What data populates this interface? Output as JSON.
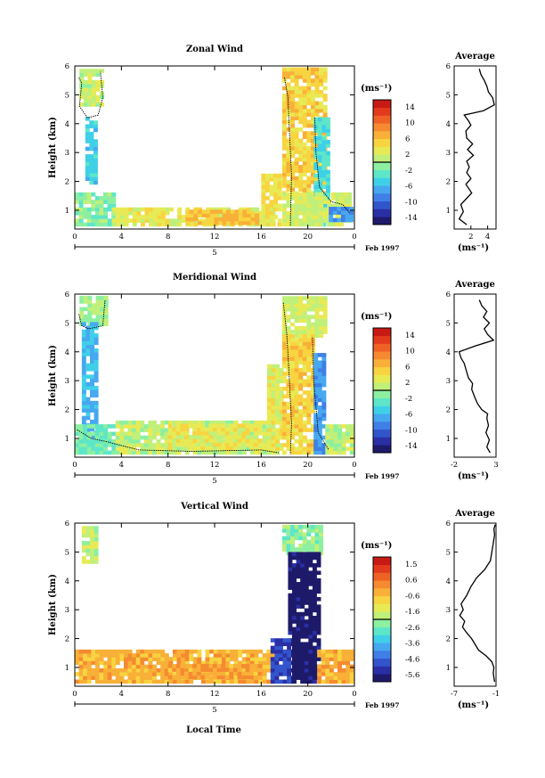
{
  "figure": {
    "month_label": "Feb 1997",
    "x_axis_label": "Local Time",
    "y_axis_label": "Height (km)",
    "colorbar_unit": "(ms⁻¹)",
    "profile_unit": "(ms⁻¹)",
    "day_label": "5",
    "colors": [
      "#1e1a6a",
      "#2a2fa6",
      "#3355cc",
      "#3f7fe6",
      "#47a8f0",
      "#3fd0e8",
      "#5ee6c8",
      "#8cf0a0",
      "#c0f07a",
      "#e8ea55",
      "#f7d440",
      "#f8b038",
      "#f58a30",
      "#ef6226",
      "#e23a1c",
      "#c81a14"
    ]
  },
  "chart_data": [
    {
      "type": "heatmap",
      "title": "Zonal Wind",
      "xlabel": "",
      "ylabel": "Height (km)",
      "x_ticks": [
        "0",
        "4",
        "8",
        "12",
        "16",
        "20",
        "0"
      ],
      "y_ticks": [
        "1",
        "2",
        "3",
        "4",
        "5",
        "6"
      ],
      "xlim": [
        0,
        24
      ],
      "ylim": [
        0.35,
        6
      ],
      "colorbar": {
        "unit": "(ms⁻¹)",
        "ticks": [
          "14",
          "10",
          "6",
          "2",
          "-2",
          "-6",
          "-10",
          "-14"
        ],
        "range": [
          -16,
          16
        ]
      },
      "regions": [
        {
          "t0": 0.4,
          "t1": 2.2,
          "z0": 4.6,
          "z1": 5.85,
          "v": 1.5
        },
        {
          "t0": 0.9,
          "t1": 1.8,
          "z0": 1.9,
          "z1": 4.2,
          "v": -5
        },
        {
          "t0": 0.0,
          "t1": 3.2,
          "z0": 0.45,
          "z1": 1.55,
          "v": -1
        },
        {
          "t0": 3.2,
          "t1": 17.0,
          "z0": 0.45,
          "z1": 1.0,
          "v": 3
        },
        {
          "t0": 9.5,
          "t1": 15.5,
          "z0": 0.5,
          "z1": 1.0,
          "v": 6
        },
        {
          "t0": 16.0,
          "t1": 17.5,
          "z0": 0.45,
          "z1": 2.2,
          "v": 4
        },
        {
          "t0": 17.8,
          "t1": 21.5,
          "z0": 1.4,
          "z1": 5.85,
          "v": 5
        },
        {
          "t0": 20.5,
          "t1": 21.8,
          "z0": 0.45,
          "z1": 4.2,
          "v": -4
        },
        {
          "t0": 17.8,
          "t1": 23.5,
          "z0": 0.45,
          "z1": 1.5,
          "v": 2
        },
        {
          "t0": 21.8,
          "t1": 23.6,
          "z0": 0.6,
          "z1": 1.1,
          "v": -8
        }
      ],
      "contour_zero": [
        [
          [
            0.35,
            5.6
          ],
          [
            0.6,
            5.4
          ],
          [
            0.4,
            4.6
          ],
          [
            1.1,
            4.2
          ],
          [
            2.0,
            4.3
          ],
          [
            2.4,
            4.9
          ],
          [
            2.2,
            5.8
          ]
        ],
        [
          [
            18.0,
            5.6
          ],
          [
            18.3,
            4.9
          ],
          [
            18.4,
            3.9
          ],
          [
            18.6,
            2.2
          ],
          [
            18.5,
            0.45
          ]
        ],
        [
          [
            20.6,
            4.2
          ],
          [
            20.7,
            3.0
          ],
          [
            21.0,
            1.8
          ],
          [
            22.0,
            1.3
          ],
          [
            23.0,
            1.2
          ],
          [
            23.6,
            0.9
          ]
        ]
      ],
      "profile": {
        "xlabel": "(ms⁻¹)",
        "title": "Average",
        "x_ticks": [
          "2",
          "4"
        ],
        "y_ticks": [
          "1",
          "2",
          "3",
          "4",
          "5",
          "6"
        ],
        "xlim": [
          0,
          5
        ],
        "ylim": [
          0.35,
          6
        ],
        "x": [
          1.5,
          0.6,
          1.1,
          0.8,
          2.1,
          1.4,
          2.0,
          1.5,
          1.8,
          1.5,
          2.3,
          1.6,
          2.2,
          1.5,
          1.4,
          2.0,
          1.7,
          1.2,
          3.5,
          4.8,
          4.6,
          4.1,
          3.9,
          3.6,
          3.2,
          3.0
        ],
        "z": [
          0.5,
          0.7,
          0.95,
          1.2,
          1.6,
          1.9,
          2.1,
          2.3,
          2.5,
          2.7,
          2.9,
          3.1,
          3.3,
          3.5,
          3.75,
          3.95,
          4.1,
          4.3,
          4.45,
          4.65,
          4.9,
          5.1,
          5.3,
          5.5,
          5.7,
          5.9
        ]
      }
    },
    {
      "type": "heatmap",
      "title": "Meridional Wind",
      "xlabel": "",
      "ylabel": "Height (km)",
      "x_ticks": [
        "0",
        "4",
        "8",
        "12",
        "16",
        "20",
        "0"
      ],
      "y_ticks": [
        "1",
        "2",
        "3",
        "4",
        "5",
        "6"
      ],
      "xlim": [
        0,
        24
      ],
      "ylim": [
        0.35,
        6
      ],
      "colorbar": {
        "unit": "(ms⁻¹)",
        "ticks": [
          "14",
          "10",
          "6",
          "2",
          "-2",
          "-6",
          "-10",
          "-14"
        ],
        "range": [
          -16,
          16
        ]
      },
      "regions": [
        {
          "t0": 0.4,
          "t1": 2.8,
          "z0": 4.9,
          "z1": 5.85,
          "v": 0
        },
        {
          "t0": 0.6,
          "t1": 2.0,
          "z0": 1.0,
          "z1": 4.9,
          "v": -6
        },
        {
          "t0": 0.0,
          "t1": 3.5,
          "z0": 0.45,
          "z1": 1.4,
          "v": -2
        },
        {
          "t0": 3.5,
          "t1": 17.0,
          "z0": 0.45,
          "z1": 1.5,
          "v": 1
        },
        {
          "t0": 8.0,
          "t1": 16.0,
          "z0": 0.6,
          "z1": 1.5,
          "v": 3
        },
        {
          "t0": 16.5,
          "t1": 17.6,
          "z0": 0.45,
          "z1": 3.5,
          "v": 3
        },
        {
          "t0": 17.8,
          "t1": 21.5,
          "z0": 4.5,
          "z1": 5.85,
          "v": 2
        },
        {
          "t0": 17.8,
          "t1": 20.5,
          "z0": 0.45,
          "z1": 4.5,
          "v": 5
        },
        {
          "t0": 20.5,
          "t1": 21.5,
          "z0": 0.45,
          "z1": 3.9,
          "v": -8
        },
        {
          "t0": 21.5,
          "t1": 24.0,
          "z0": 0.45,
          "z1": 1.4,
          "v": 1
        }
      ],
      "contour_zero": [
        [
          [
            0.35,
            5.3
          ],
          [
            0.6,
            4.9
          ],
          [
            1.2,
            4.8
          ],
          [
            2.4,
            4.9
          ],
          [
            2.6,
            5.8
          ]
        ],
        [
          [
            17.9,
            5.7
          ],
          [
            18.2,
            4.6
          ],
          [
            18.4,
            3.2
          ],
          [
            18.6,
            1.5
          ],
          [
            18.5,
            0.45
          ]
        ],
        [
          [
            20.4,
            4.5
          ],
          [
            20.5,
            3.0
          ],
          [
            20.9,
            1.2
          ],
          [
            21.8,
            0.6
          ]
        ],
        [
          [
            0.2,
            1.3
          ],
          [
            1.4,
            1.0
          ],
          [
            2.6,
            0.9
          ],
          [
            5.5,
            0.6
          ],
          [
            10.0,
            0.55
          ],
          [
            16.0,
            0.6
          ],
          [
            17.5,
            0.5
          ]
        ]
      ],
      "profile": {
        "xlabel": "(ms⁻¹)",
        "title": "Average",
        "x_ticks": [
          "-2",
          "3"
        ],
        "y_ticks": [
          "1",
          "2",
          "3",
          "4",
          "5",
          "6"
        ],
        "xlim": [
          -2,
          3
        ],
        "ylim": [
          0.35,
          6
        ],
        "x": [
          2.3,
          1.9,
          2.2,
          1.8,
          2.1,
          1.9,
          2.0,
          1.3,
          0.8,
          0.5,
          0.1,
          0.2,
          -0.3,
          -0.5,
          -0.8,
          -1.2,
          -1.4,
          0.5,
          2.7,
          2.0,
          1.6,
          2.2,
          1.5,
          1.9,
          1.3,
          1.0
        ],
        "z": [
          0.5,
          0.7,
          0.95,
          1.2,
          1.45,
          1.7,
          1.85,
          2.0,
          2.2,
          2.4,
          2.7,
          2.9,
          3.1,
          3.3,
          3.6,
          3.8,
          4.0,
          4.2,
          4.4,
          4.6,
          4.8,
          5.0,
          5.2,
          5.4,
          5.6,
          5.8
        ]
      }
    },
    {
      "type": "heatmap",
      "title": "Vertical Wind",
      "xlabel": "Local Time",
      "ylabel": "Height (km)",
      "x_ticks": [
        "0",
        "4",
        "8",
        "12",
        "16",
        "20",
        "0"
      ],
      "y_ticks": [
        "1",
        "2",
        "3",
        "4",
        "5",
        "6"
      ],
      "xlim": [
        0,
        24
      ],
      "ylim": [
        0.35,
        6
      ],
      "colorbar": {
        "unit": "(ms⁻¹)",
        "ticks": [
          "1.5",
          "0.6",
          "-0.6",
          "-1.6",
          "-2.6",
          "-3.6",
          "-4.6",
          "-5.6"
        ],
        "range": [
          -6,
          2
        ]
      },
      "regions": [
        {
          "t0": 0.6,
          "t1": 2.0,
          "z0": 4.6,
          "z1": 5.8,
          "v": -1.7
        },
        {
          "t0": 0.0,
          "t1": 17.0,
          "z0": 0.45,
          "z1": 1.5,
          "v": -0.3
        },
        {
          "t0": 8.0,
          "t1": 16.0,
          "z0": 0.6,
          "z1": 1.1,
          "v": -0.1
        },
        {
          "t0": 17.8,
          "t1": 21.0,
          "z0": 4.9,
          "z1": 5.85,
          "v": -2.2
        },
        {
          "t0": 18.3,
          "t1": 20.8,
          "z0": 0.45,
          "z1": 4.9,
          "v": -5.9
        },
        {
          "t0": 16.8,
          "t1": 18.3,
          "z0": 0.45,
          "z1": 2.0,
          "v": -5.0
        },
        {
          "t0": 20.8,
          "t1": 24.0,
          "z0": 0.45,
          "z1": 1.6,
          "v": -0.2
        }
      ],
      "contour_zero": [],
      "profile": {
        "xlabel": "(ms⁻¹)",
        "title": "Average",
        "x_ticks": [
          "-7",
          "-1"
        ],
        "y_ticks": [
          "1",
          "2",
          "3",
          "4",
          "5",
          "6"
        ],
        "xlim": [
          -7,
          -1
        ],
        "ylim": [
          0.35,
          6
        ],
        "x": [
          -1.2,
          -1.4,
          -1.3,
          -1.6,
          -2.4,
          -3.5,
          -4.0,
          -4.5,
          -5.2,
          -5.8,
          -5.5,
          -6.2,
          -5.7,
          -6.0,
          -5.2,
          -4.6,
          -3.8,
          -2.6,
          -1.8,
          -1.6,
          -1.4,
          -1.2,
          -1.3,
          -1.1
        ],
        "z": [
          0.5,
          0.8,
          1.0,
          1.2,
          1.4,
          1.6,
          1.8,
          2.0,
          2.2,
          2.4,
          2.6,
          2.8,
          3.0,
          3.2,
          3.5,
          3.8,
          4.1,
          4.4,
          4.7,
          5.0,
          5.3,
          5.6,
          5.8,
          5.95
        ]
      }
    }
  ]
}
